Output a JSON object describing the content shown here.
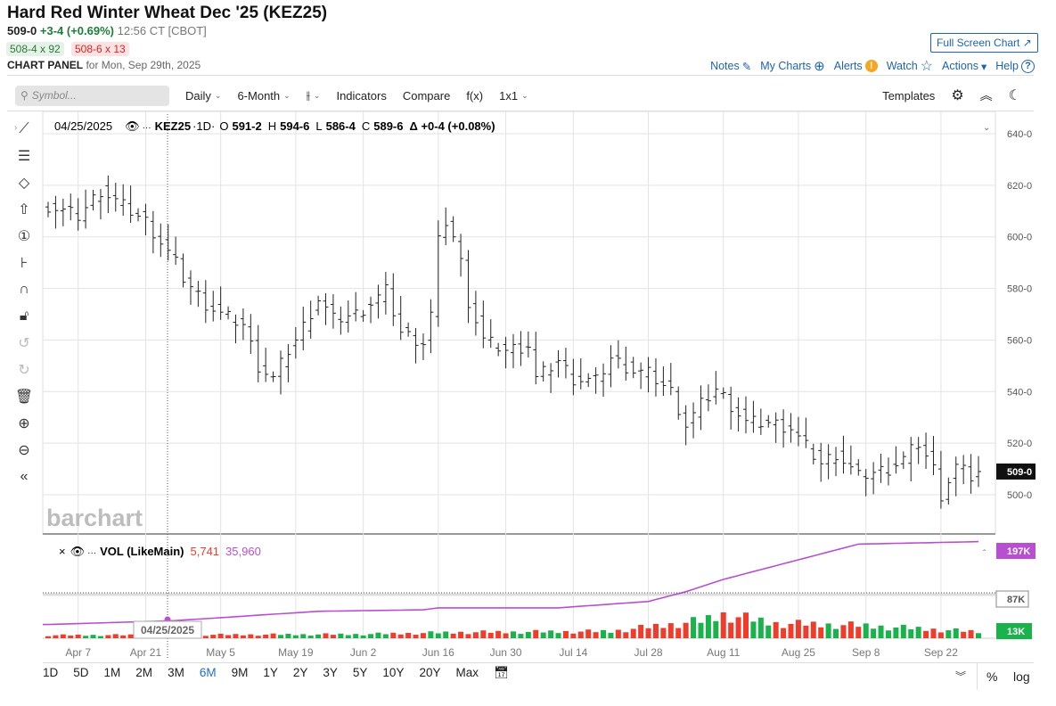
{
  "header": {
    "title": "Hard Red Winter Wheat Dec '25 (KEZ25)",
    "last": "509-0",
    "change": "+3-4 (+0.69%)",
    "time": "12:56 CT [CBOT]",
    "bid": "508-4 x 92",
    "ask": "508-6 x 13",
    "panel_label": "CHART PANEL",
    "panel_date": "for Mon, Sep 29th, 2025",
    "full_screen": "Full Screen Chart ↗"
  },
  "links": [
    {
      "label": "Notes",
      "icon": "✎"
    },
    {
      "label": "My Charts",
      "icon": "⊕"
    },
    {
      "label": "Alerts",
      "icon": "!"
    },
    {
      "label": "Watch",
      "icon": "☆"
    },
    {
      "label": "Actions",
      "icon": "▾"
    },
    {
      "label": "Help",
      "icon": "?"
    }
  ],
  "toolbar": {
    "symbol_placeholder": "Symbol...",
    "interval": "Daily",
    "range": "6-Month",
    "indicators": "Indicators",
    "compare": "Compare",
    "fx": "f(x)",
    "layout": "1x1",
    "templates": "Templates"
  },
  "legend": {
    "date": "04/25/2025",
    "symbol": "KEZ25",
    "interval": "·1D·",
    "o_label": "O",
    "o": "591-2",
    "h_label": "H",
    "h": "594-6",
    "l_label": "L",
    "l": "586-4",
    "c_label": "C",
    "c": "589-6",
    "delta": "Δ +0-4 (+0.08%)"
  },
  "vol_legend": {
    "name": "VOL (LikeMain)",
    "vol": "5,741",
    "oi": "35,960"
  },
  "cursor_date": "04/25/2025",
  "watermark": "barchart",
  "range_buttons": [
    "1D",
    "5D",
    "1M",
    "2M",
    "3M",
    "6M",
    "9M",
    "1Y",
    "2Y",
    "3Y",
    "5Y",
    "10Y",
    "20Y",
    "Max"
  ],
  "active_range": "6M",
  "bottom_right": {
    "pct": "%",
    "log": "log"
  },
  "colors": {
    "up": "#1a7f37",
    "down": "#d22",
    "oi": "#b84fd0",
    "vol_up": "#19b24b",
    "vol_down": "#f03c2b",
    "link": "#1d63b3"
  },
  "chart_data": {
    "type": "bar",
    "price_axis": {
      "ticks": [
        "640-0",
        "620-0",
        "600-0",
        "580-0",
        "560-0",
        "540-0",
        "520-0",
        "500-0"
      ],
      "values": [
        640,
        620,
        600,
        580,
        560,
        540,
        520,
        500
      ],
      "last_label": "509-0",
      "last": 509
    },
    "vol_axis": {
      "oi_label": "197K",
      "mid_label": "87K",
      "vol_label": "13K"
    },
    "x_ticks": [
      [
        "2025-04-07",
        "Apr 7"
      ],
      [
        "2025-04-21",
        "Apr 21"
      ],
      [
        "2025-05-05",
        "May 5"
      ],
      [
        "2025-05-19",
        "May 19"
      ],
      [
        "2025-06-02",
        "Jun 2"
      ],
      [
        "2025-06-16",
        "Jun 16"
      ],
      [
        "2025-06-30",
        "Jun 30"
      ],
      [
        "2025-07-14",
        "Jul 14"
      ],
      [
        "2025-07-28",
        "Jul 28"
      ],
      [
        "2025-08-11",
        "Aug 11"
      ],
      [
        "2025-08-25",
        "Aug 25"
      ],
      [
        "2025-09-08",
        "Sep 8"
      ],
      [
        "2025-09-22",
        "Sep 22"
      ]
    ],
    "close_keypoints": [
      [
        "2025-04-01",
        612
      ],
      [
        "2025-04-07",
        608
      ],
      [
        "2025-04-10",
        618
      ],
      [
        "2025-04-15",
        612
      ],
      [
        "2025-04-21",
        606
      ],
      [
        "2025-04-24",
        594
      ],
      [
        "2025-04-25",
        589.75
      ],
      [
        "2025-04-28",
        584
      ],
      [
        "2025-05-01",
        574
      ],
      [
        "2025-05-05",
        570
      ],
      [
        "2025-05-08",
        566
      ],
      [
        "2025-05-12",
        550
      ],
      [
        "2025-05-14",
        545
      ],
      [
        "2025-05-16",
        556
      ],
      [
        "2025-05-19",
        560
      ],
      [
        "2025-05-22",
        576
      ],
      [
        "2025-05-27",
        568
      ],
      [
        "2025-05-30",
        570
      ],
      [
        "2025-06-02",
        572
      ],
      [
        "2025-06-05",
        579
      ],
      [
        "2025-06-09",
        563
      ],
      [
        "2025-06-12",
        559
      ],
      [
        "2025-06-13",
        570
      ],
      [
        "2025-06-16",
        598
      ],
      [
        "2025-06-17",
        606
      ],
      [
        "2025-06-18",
        600
      ],
      [
        "2025-06-20",
        590
      ],
      [
        "2025-06-23",
        575
      ],
      [
        "2025-06-25",
        560
      ],
      [
        "2025-06-30",
        556
      ],
      [
        "2025-07-03",
        558
      ],
      [
        "2025-07-07",
        545
      ],
      [
        "2025-07-10",
        552
      ],
      [
        "2025-07-14",
        545
      ],
      [
        "2025-07-17",
        544
      ],
      [
        "2025-07-21",
        553
      ],
      [
        "2025-07-24",
        548
      ],
      [
        "2025-07-28",
        547
      ],
      [
        "2025-07-31",
        540
      ],
      [
        "2025-08-04",
        527
      ],
      [
        "2025-08-06",
        535
      ],
      [
        "2025-08-08",
        541
      ],
      [
        "2025-08-11",
        538
      ],
      [
        "2025-08-14",
        528
      ],
      [
        "2025-08-19",
        528
      ],
      [
        "2025-08-22",
        526
      ],
      [
        "2025-08-25",
        522
      ],
      [
        "2025-08-28",
        512
      ],
      [
        "2025-09-02",
        516
      ],
      [
        "2025-09-05",
        507
      ],
      [
        "2025-09-08",
        508
      ],
      [
        "2025-09-11",
        510
      ],
      [
        "2025-09-15",
        514
      ],
      [
        "2025-09-17",
        520
      ],
      [
        "2025-09-19",
        510
      ],
      [
        "2025-09-22",
        500
      ],
      [
        "2025-09-24",
        511
      ],
      [
        "2025-09-26",
        507
      ],
      [
        "2025-09-29",
        509
      ]
    ],
    "volume_keypoints": [
      [
        "2025-04-01",
        6
      ],
      [
        "2025-05-30",
        8
      ],
      [
        "2025-06-20",
        12
      ],
      [
        "2025-07-20",
        14
      ],
      [
        "2025-08-06",
        35
      ],
      [
        "2025-08-11",
        48
      ],
      [
        "2025-08-20",
        30
      ],
      [
        "2025-09-05",
        26
      ],
      [
        "2025-09-29",
        13
      ]
    ],
    "oi_keypoints": [
      [
        "2025-04-01",
        28
      ],
      [
        "2025-04-25",
        36
      ],
      [
        "2025-05-22",
        55
      ],
      [
        "2025-06-12",
        58
      ],
      [
        "2025-06-16",
        62
      ],
      [
        "2025-07-10",
        62
      ],
      [
        "2025-07-28",
        75
      ],
      [
        "2025-08-04",
        95
      ],
      [
        "2025-08-11",
        120
      ],
      [
        "2025-08-25",
        160
      ],
      [
        "2025-09-05",
        192
      ],
      [
        "2025-09-29",
        197
      ]
    ],
    "units": {
      "volume": "K contracts",
      "oi": "K contracts"
    },
    "holidays": [
      "2025-04-18",
      "2025-05-26",
      "2025-06-19",
      "2025-07-04",
      "2025-09-01"
    ]
  }
}
